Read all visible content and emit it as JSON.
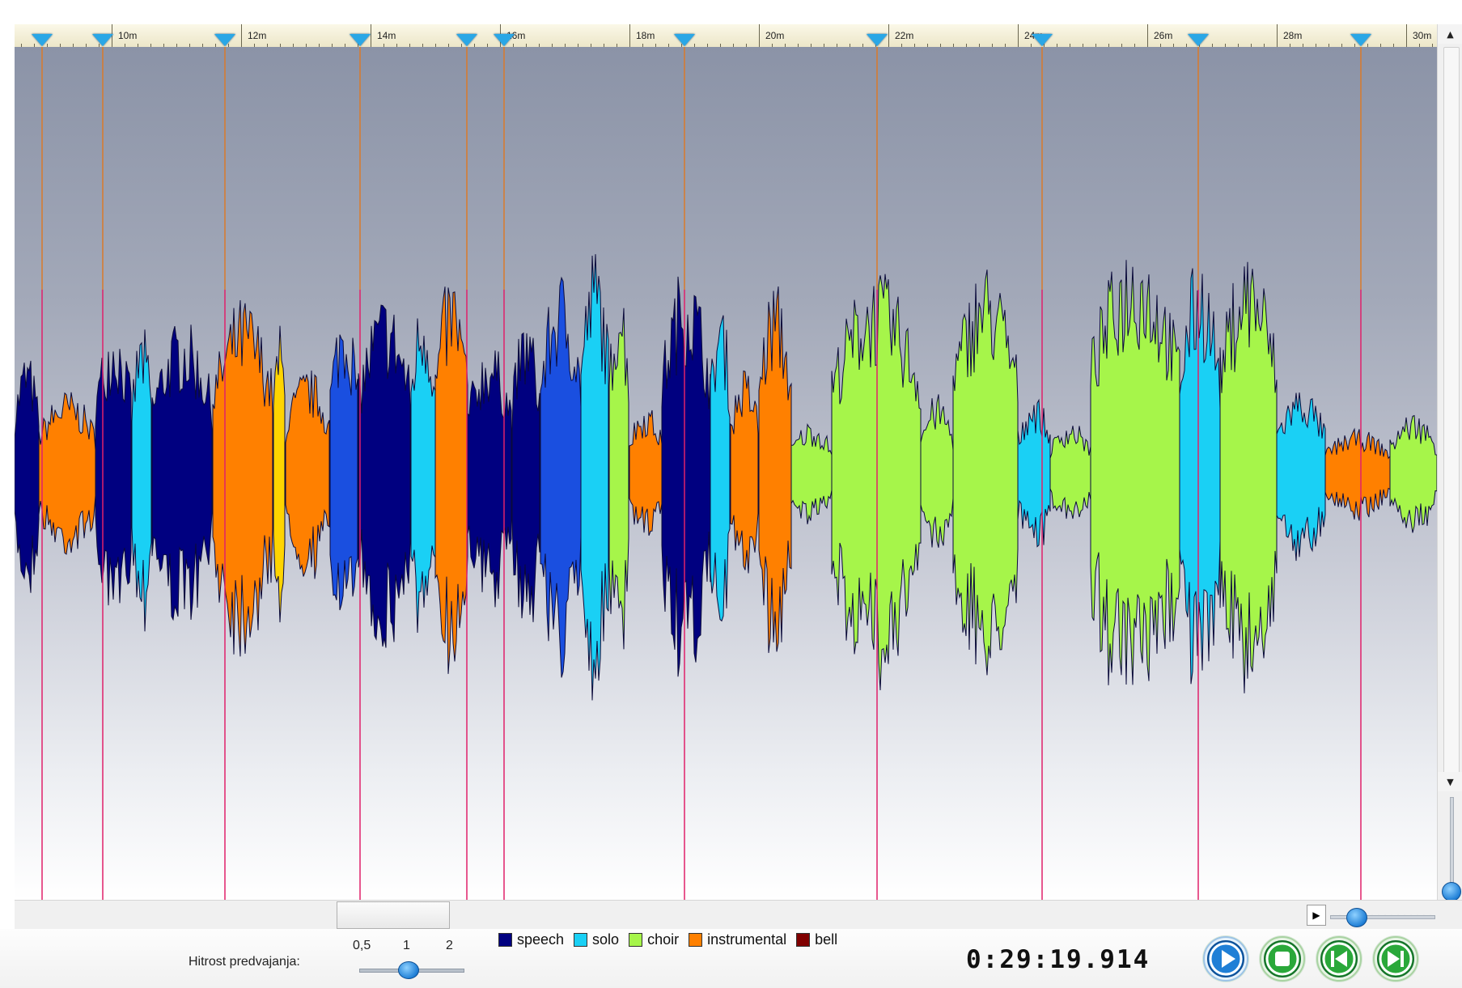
{
  "ruler": {
    "labels": [
      "10m",
      "12m",
      "14m",
      "16m",
      "18m",
      "20m",
      "22m",
      "24m",
      "26m",
      "28m",
      "30m"
    ]
  },
  "legend": {
    "items": [
      {
        "label": "speech",
        "color": "#000080"
      },
      {
        "label": "solo",
        "color": "#1ad0f5"
      },
      {
        "label": "choir",
        "color": "#a6f54a"
      },
      {
        "label": "instrumental",
        "color": "#ff8000"
      },
      {
        "label": "bell",
        "color": "#800000"
      }
    ]
  },
  "playback_speed": {
    "label": "Hitrost predvajanja:",
    "ticks": [
      "0,5",
      "1",
      "2"
    ],
    "value": 1
  },
  "time_display": "0:29:19.914",
  "controls": {
    "play": "play-icon",
    "stop": "stop-icon",
    "prev": "skip-back-icon",
    "next": "skip-forward-icon"
  },
  "colors": {
    "marker_top": "#d97a2a",
    "marker_bottom": "#e0206a",
    "button_blue": "#1f7fd6",
    "button_green": "#2aa83a"
  }
}
